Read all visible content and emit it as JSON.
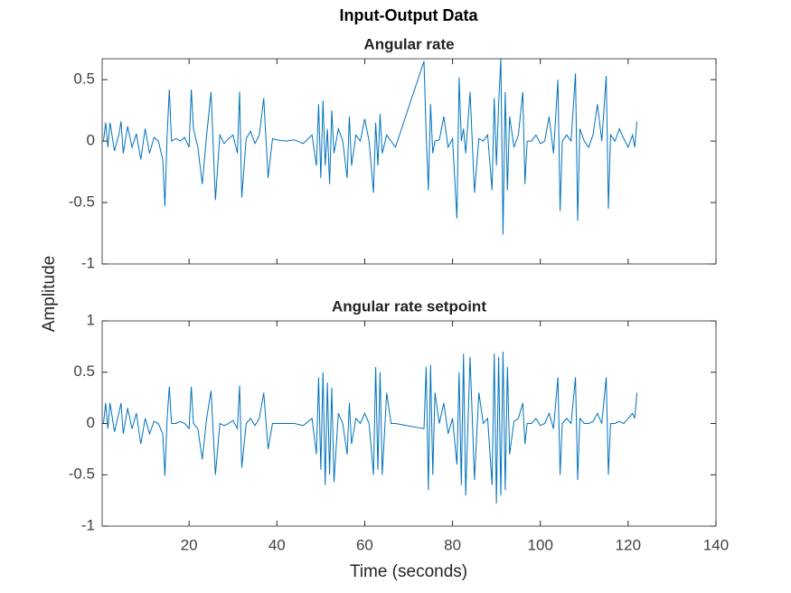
{
  "chart_data": {
    "type": "line",
    "title": "Input-Output Data",
    "ylabel": "Amplitude",
    "xlabel": "Time (seconds)",
    "xlim": [
      0.2,
      140
    ],
    "xticks": [
      20,
      40,
      60,
      80,
      100,
      120,
      140
    ],
    "x": [
      0.5,
      1,
      1.5,
      2,
      3,
      4,
      4.5,
      5,
      6,
      7,
      8,
      9,
      10,
      11,
      12,
      13,
      14,
      14.5,
      15,
      15.5,
      16,
      17,
      18,
      19,
      20,
      20.5,
      21,
      22,
      23,
      24,
      25,
      26,
      27,
      28,
      29,
      30,
      31,
      31.5,
      32,
      33,
      34,
      35,
      36,
      37,
      38,
      39,
      40,
      42,
      44,
      46,
      48,
      49,
      49.5,
      50,
      50.5,
      51,
      51.5,
      52,
      52.5,
      53,
      54,
      55,
      56,
      56.5,
      57,
      58,
      59,
      60,
      61,
      62,
      62.5,
      63,
      63.5,
      64,
      65,
      66,
      67,
      73.5,
      74,
      74.5,
      75,
      75.5,
      76,
      77,
      78,
      79,
      80,
      81,
      81.5,
      82,
      82.5,
      83,
      84,
      85,
      86,
      87,
      88,
      89,
      89.5,
      90,
      90.5,
      91,
      91.5,
      92,
      92.5,
      93,
      94,
      95,
      96,
      96.5,
      97,
      98,
      99,
      100,
      101,
      102,
      103,
      104,
      104.5,
      105,
      106,
      107,
      108,
      108.5,
      109,
      110,
      111,
      112,
      113,
      114,
      115,
      115.5,
      116,
      117,
      118,
      119,
      120,
      121,
      121.5,
      122
    ],
    "panels": [
      {
        "title": "Angular rate",
        "ylim": [
          -1,
          0.67
        ],
        "yticks": [
          -1,
          -0.5,
          0,
          0.5
        ],
        "series": [
          {
            "color": "#0072bd",
            "values": [
              0,
              0.15,
              -0.05,
              0.15,
              -0.08,
              0.05,
              0.16,
              -0.1,
              0.12,
              -0.05,
              0.06,
              -0.15,
              0.1,
              -0.1,
              0.03,
              0,
              -0.15,
              -0.53,
              0.05,
              0.42,
              0,
              0.02,
              0,
              0.03,
              -0.05,
              0.42,
              0.1,
              -0.05,
              -0.35,
              0.05,
              0.4,
              -0.48,
              0.05,
              -0.02,
              0.02,
              0.05,
              -0.1,
              0.4,
              -0.46,
              0.02,
              0.08,
              -0.02,
              0.05,
              0.35,
              -0.3,
              0.02,
              0.01,
              0,
              0.01,
              -0.02,
              0.05,
              -0.2,
              0.3,
              -0.3,
              0.33,
              -0.2,
              0.1,
              -0.35,
              0.25,
              -0.1,
              0.1,
              0,
              -0.3,
              0.2,
              -0.2,
              0.05,
              0,
              0.18,
              0,
              -0.42,
              0.15,
              -0.2,
              0.22,
              -0.1,
              0.05,
              0,
              -0.05,
              0.65,
              0.05,
              -0.4,
              0.3,
              -0.1,
              0,
              0.01,
              0.2,
              -0.05,
              0.02,
              -0.63,
              0.52,
              0,
              0.1,
              -0.1,
              0.4,
              -0.42,
              0.02,
              0,
              0.05,
              -0.4,
              0.35,
              -0.2,
              0.3,
              0.67,
              -0.76,
              0.4,
              -0.4,
              0.2,
              -0.05,
              0.05,
              0.4,
              -0.35,
              0,
              0,
              0.05,
              -0.02,
              0,
              0.2,
              -0.1,
              0.5,
              -0.57,
              0,
              0.05,
              0,
              0.55,
              -0.65,
              0.1,
              0,
              -0.05,
              0.05,
              0.3,
              0,
              0.53,
              -0.55,
              0.05,
              0,
              0.1,
              0.02,
              -0.05,
              0.05,
              -0.05,
              0.16
            ]
          }
        ]
      },
      {
        "title": "Angular rate setpoint",
        "ylim": [
          -1,
          1
        ],
        "yticks": [
          -1,
          -0.5,
          0,
          0.5,
          1
        ],
        "series": [
          {
            "color": "#0072bd",
            "values": [
              0,
              0.2,
              -0.05,
              0.2,
              -0.08,
              0.1,
              0.2,
              -0.1,
              0.15,
              -0.05,
              0.1,
              -0.2,
              0.05,
              -0.1,
              0.02,
              0,
              -0.1,
              -0.51,
              0.05,
              0.36,
              0,
              0,
              0.02,
              0,
              -0.05,
              0.36,
              0,
              -0.05,
              -0.35,
              0.05,
              0.32,
              -0.5,
              0,
              -0.02,
              0,
              0.03,
              -0.05,
              0.37,
              -0.43,
              0,
              0.05,
              -0.02,
              0.05,
              0.3,
              -0.25,
              0,
              0,
              0,
              0,
              -0.02,
              0.05,
              -0.3,
              0.45,
              -0.45,
              0.5,
              -0.6,
              0.4,
              -0.5,
              0.35,
              -0.57,
              0.1,
              0,
              -0.3,
              0.2,
              -0.2,
              0.05,
              0,
              0.1,
              0,
              -0.5,
              0.55,
              -0.45,
              0.5,
              -0.5,
              0.3,
              0,
              0,
              -0.05,
              0.55,
              -0.65,
              0.57,
              -0.5,
              0.3,
              0,
              0.2,
              -0.1,
              0.05,
              -0.4,
              0.5,
              -0.6,
              0.68,
              -0.7,
              0.65,
              -0.55,
              0.3,
              0,
              0.05,
              -0.6,
              0.68,
              -0.78,
              0.65,
              -0.7,
              0.7,
              -0.65,
              0.55,
              -0.3,
              0.02,
              0.05,
              0.2,
              -0.2,
              0,
              0,
              0.05,
              -0.02,
              0,
              0.1,
              -0.05,
              0.45,
              -0.5,
              0,
              0.05,
              0,
              0.45,
              -0.55,
              0.05,
              0,
              0,
              0.02,
              0.1,
              0,
              0.45,
              -0.5,
              0,
              0,
              0.02,
              0,
              0.05,
              0.1,
              0.05,
              0.3
            ]
          }
        ]
      }
    ]
  }
}
